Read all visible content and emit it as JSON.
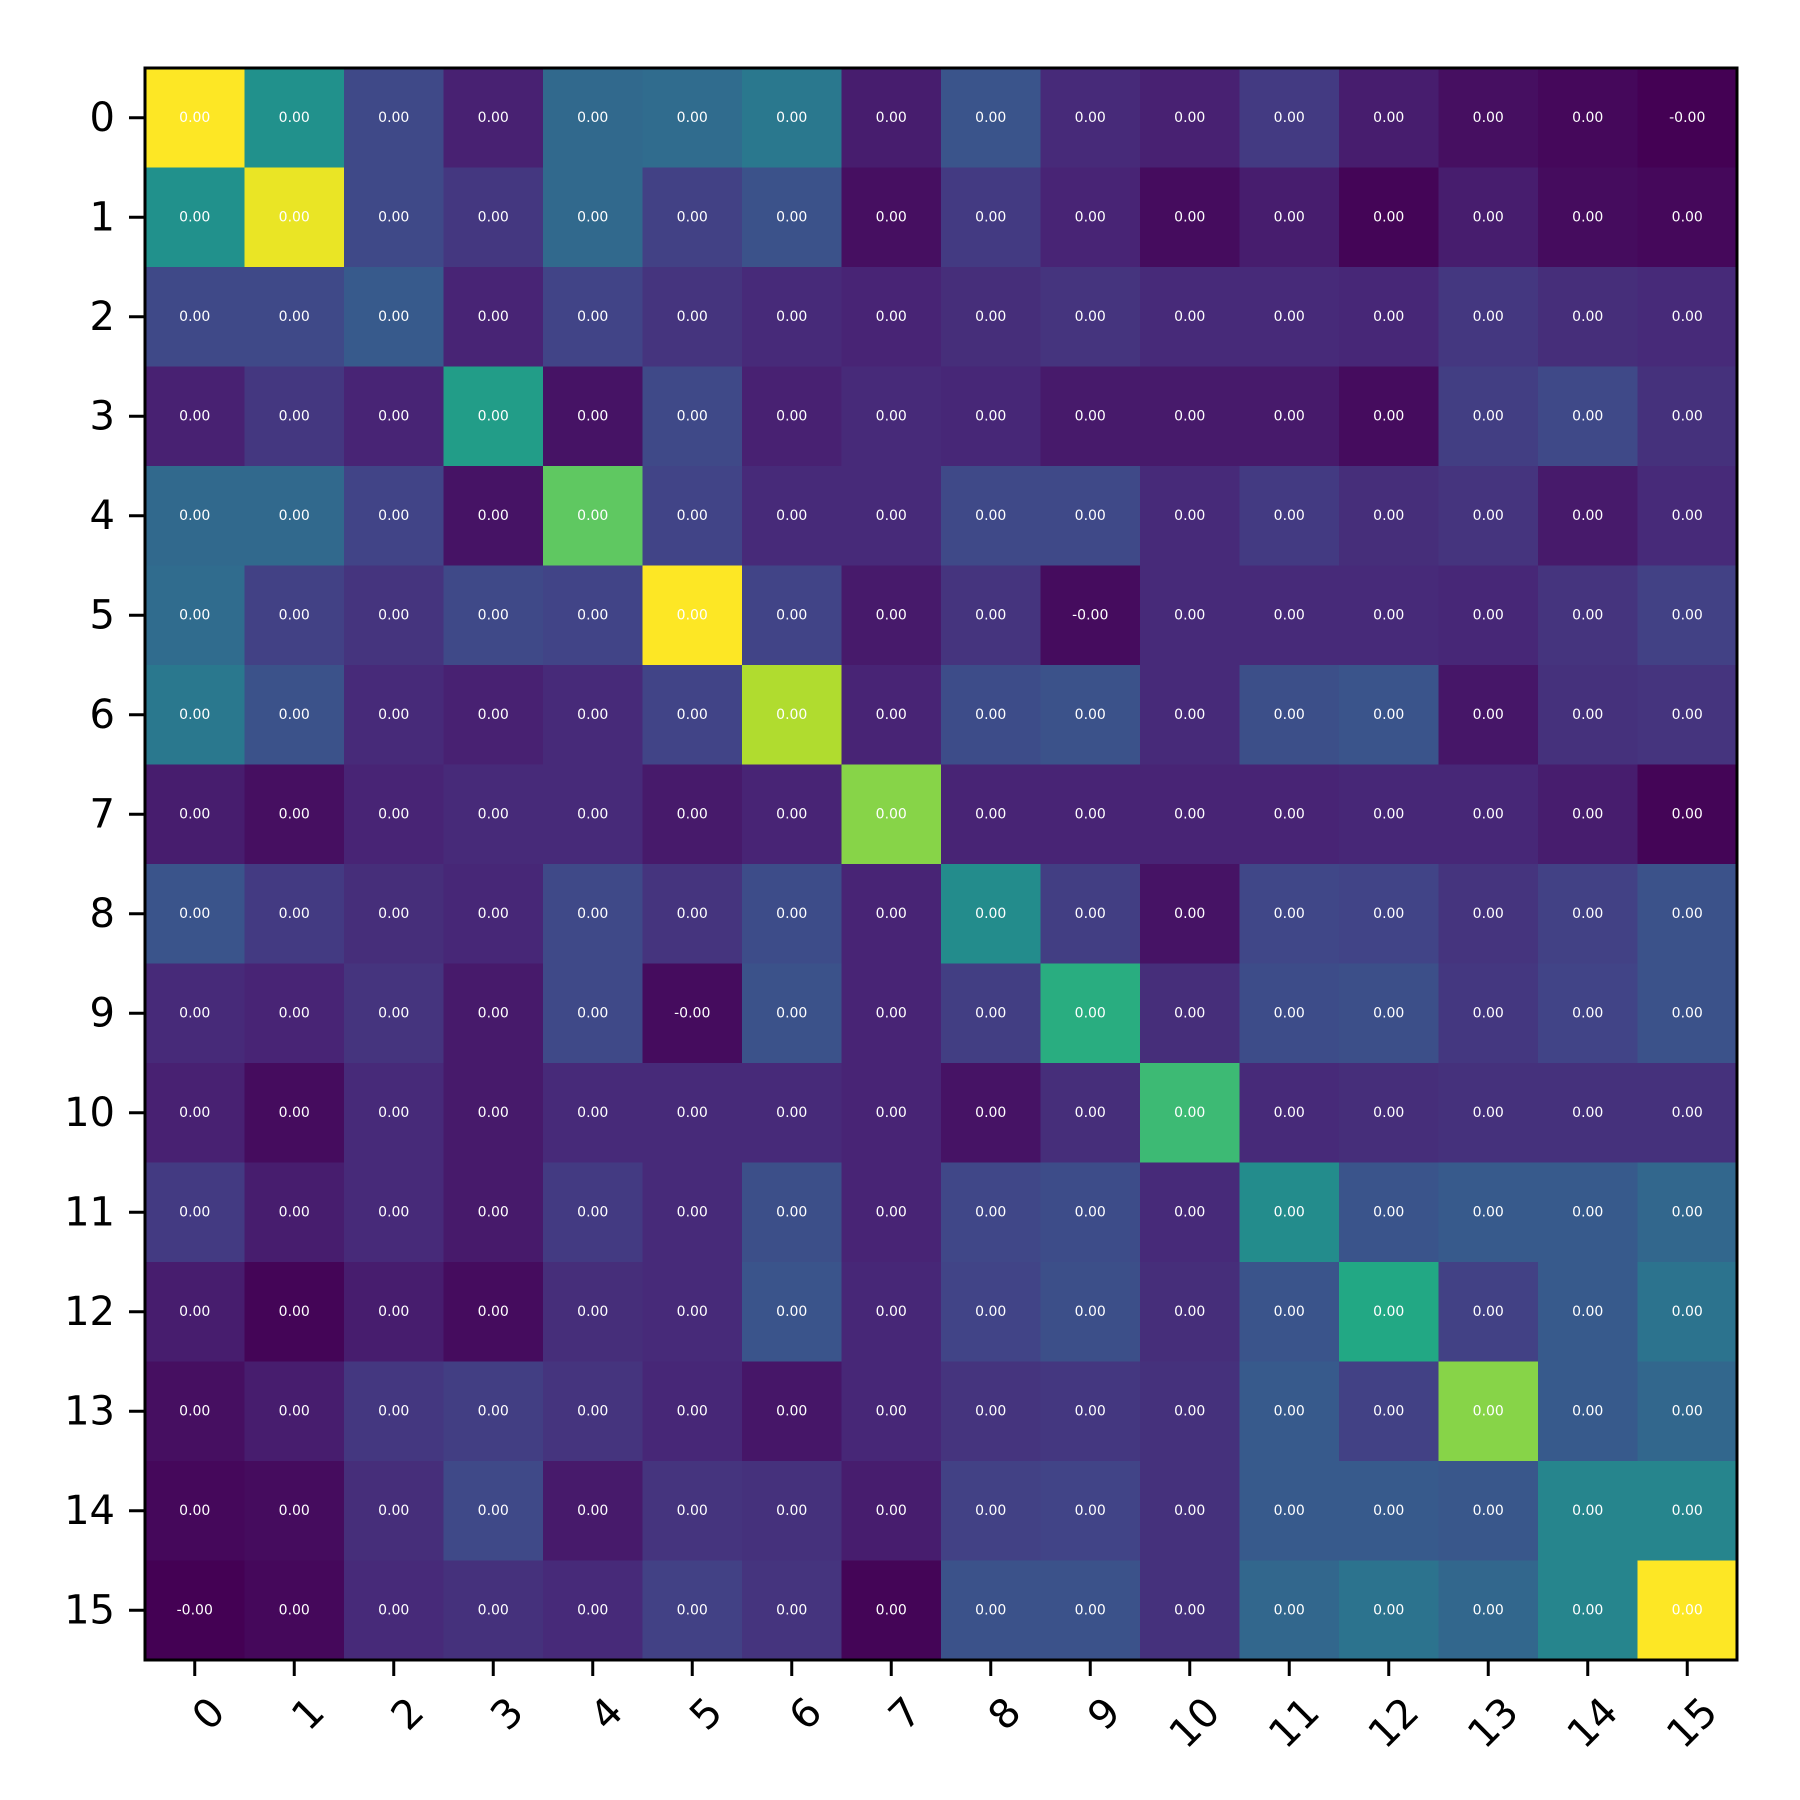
{
  "chart_data": {
    "type": "heatmap",
    "title": "",
    "xlabel": "",
    "ylabel": "",
    "x_categories": [
      "0",
      "1",
      "2",
      "3",
      "4",
      "5",
      "6",
      "7",
      "8",
      "9",
      "10",
      "11",
      "12",
      "13",
      "14",
      "15"
    ],
    "y_categories": [
      "0",
      "1",
      "2",
      "3",
      "4",
      "5",
      "6",
      "7",
      "8",
      "9",
      "10",
      "11",
      "12",
      "13",
      "14",
      "15"
    ],
    "colormap": "viridis",
    "grid": false,
    "intensity": [
      [
        1.0,
        0.5,
        0.22,
        0.09,
        0.34,
        0.35,
        0.4,
        0.08,
        0.26,
        0.12,
        0.09,
        0.17,
        0.08,
        0.04,
        0.02,
        0.0
      ],
      [
        0.5,
        0.97,
        0.22,
        0.16,
        0.34,
        0.19,
        0.25,
        0.04,
        0.17,
        0.1,
        0.03,
        0.08,
        0.01,
        0.08,
        0.03,
        0.02
      ],
      [
        0.22,
        0.22,
        0.28,
        0.1,
        0.2,
        0.15,
        0.12,
        0.1,
        0.13,
        0.15,
        0.12,
        0.12,
        0.11,
        0.16,
        0.13,
        0.12
      ],
      [
        0.09,
        0.16,
        0.1,
        0.55,
        0.05,
        0.22,
        0.09,
        0.12,
        0.11,
        0.07,
        0.07,
        0.07,
        0.03,
        0.18,
        0.22,
        0.14
      ],
      [
        0.34,
        0.34,
        0.2,
        0.05,
        0.75,
        0.2,
        0.12,
        0.12,
        0.22,
        0.22,
        0.12,
        0.17,
        0.13,
        0.15,
        0.07,
        0.12
      ],
      [
        0.35,
        0.19,
        0.15,
        0.22,
        0.2,
        1.0,
        0.2,
        0.07,
        0.15,
        0.03,
        0.12,
        0.12,
        0.12,
        0.11,
        0.15,
        0.19
      ],
      [
        0.4,
        0.25,
        0.12,
        0.09,
        0.12,
        0.2,
        0.88,
        0.1,
        0.23,
        0.25,
        0.12,
        0.24,
        0.26,
        0.06,
        0.14,
        0.15
      ],
      [
        0.08,
        0.04,
        0.1,
        0.12,
        0.12,
        0.07,
        0.1,
        0.82,
        0.1,
        0.1,
        0.1,
        0.1,
        0.11,
        0.11,
        0.08,
        0.01
      ],
      [
        0.26,
        0.17,
        0.13,
        0.11,
        0.22,
        0.15,
        0.23,
        0.1,
        0.48,
        0.18,
        0.05,
        0.21,
        0.2,
        0.15,
        0.19,
        0.25
      ],
      [
        0.12,
        0.1,
        0.15,
        0.07,
        0.22,
        0.03,
        0.25,
        0.1,
        0.18,
        0.62,
        0.13,
        0.23,
        0.24,
        0.16,
        0.2,
        0.25
      ],
      [
        0.09,
        0.03,
        0.12,
        0.07,
        0.12,
        0.12,
        0.12,
        0.1,
        0.05,
        0.13,
        0.68,
        0.12,
        0.13,
        0.14,
        0.14,
        0.14
      ],
      [
        0.17,
        0.08,
        0.12,
        0.07,
        0.17,
        0.12,
        0.24,
        0.1,
        0.21,
        0.23,
        0.12,
        0.48,
        0.26,
        0.28,
        0.28,
        0.33
      ],
      [
        0.08,
        0.01,
        0.08,
        0.03,
        0.13,
        0.12,
        0.26,
        0.11,
        0.2,
        0.24,
        0.13,
        0.26,
        0.6,
        0.19,
        0.28,
        0.38
      ],
      [
        0.04,
        0.08,
        0.16,
        0.18,
        0.15,
        0.11,
        0.06,
        0.11,
        0.15,
        0.16,
        0.14,
        0.28,
        0.19,
        0.82,
        0.28,
        0.33
      ],
      [
        0.02,
        0.03,
        0.13,
        0.22,
        0.07,
        0.15,
        0.14,
        0.08,
        0.19,
        0.2,
        0.14,
        0.28,
        0.28,
        0.27,
        0.45,
        0.45
      ],
      [
        0.0,
        0.02,
        0.12,
        0.14,
        0.12,
        0.19,
        0.15,
        0.01,
        0.25,
        0.25,
        0.14,
        0.33,
        0.38,
        0.33,
        0.45,
        1.0
      ]
    ],
    "cell_labels": [
      [
        "0.00",
        "0.00",
        "0.00",
        "0.00",
        "0.00",
        "0.00",
        "0.00",
        "0.00",
        "0.00",
        "0.00",
        "0.00",
        "0.00",
        "0.00",
        "0.00",
        "0.00",
        "-0.00"
      ],
      [
        "0.00",
        "0.00",
        "0.00",
        "0.00",
        "0.00",
        "0.00",
        "0.00",
        "0.00",
        "0.00",
        "0.00",
        "0.00",
        "0.00",
        "0.00",
        "0.00",
        "0.00",
        "0.00"
      ],
      [
        "0.00",
        "0.00",
        "0.00",
        "0.00",
        "0.00",
        "0.00",
        "0.00",
        "0.00",
        "0.00",
        "0.00",
        "0.00",
        "0.00",
        "0.00",
        "0.00",
        "0.00",
        "0.00"
      ],
      [
        "0.00",
        "0.00",
        "0.00",
        "0.00",
        "0.00",
        "0.00",
        "0.00",
        "0.00",
        "0.00",
        "0.00",
        "0.00",
        "0.00",
        "0.00",
        "0.00",
        "0.00",
        "0.00"
      ],
      [
        "0.00",
        "0.00",
        "0.00",
        "0.00",
        "0.00",
        "0.00",
        "0.00",
        "0.00",
        "0.00",
        "0.00",
        "0.00",
        "0.00",
        "0.00",
        "0.00",
        "0.00",
        "0.00"
      ],
      [
        "0.00",
        "0.00",
        "0.00",
        "0.00",
        "0.00",
        "0.00",
        "0.00",
        "0.00",
        "0.00",
        "-0.00",
        "0.00",
        "0.00",
        "0.00",
        "0.00",
        "0.00",
        "0.00"
      ],
      [
        "0.00",
        "0.00",
        "0.00",
        "0.00",
        "0.00",
        "0.00",
        "0.00",
        "0.00",
        "0.00",
        "0.00",
        "0.00",
        "0.00",
        "0.00",
        "0.00",
        "0.00",
        "0.00"
      ],
      [
        "0.00",
        "0.00",
        "0.00",
        "0.00",
        "0.00",
        "0.00",
        "0.00",
        "0.00",
        "0.00",
        "0.00",
        "0.00",
        "0.00",
        "0.00",
        "0.00",
        "0.00",
        "0.00"
      ],
      [
        "0.00",
        "0.00",
        "0.00",
        "0.00",
        "0.00",
        "0.00",
        "0.00",
        "0.00",
        "0.00",
        "0.00",
        "0.00",
        "0.00",
        "0.00",
        "0.00",
        "0.00",
        "0.00"
      ],
      [
        "0.00",
        "0.00",
        "0.00",
        "0.00",
        "0.00",
        "-0.00",
        "0.00",
        "0.00",
        "0.00",
        "0.00",
        "0.00",
        "0.00",
        "0.00",
        "0.00",
        "0.00",
        "0.00"
      ],
      [
        "0.00",
        "0.00",
        "0.00",
        "0.00",
        "0.00",
        "0.00",
        "0.00",
        "0.00",
        "0.00",
        "0.00",
        "0.00",
        "0.00",
        "0.00",
        "0.00",
        "0.00",
        "0.00"
      ],
      [
        "0.00",
        "0.00",
        "0.00",
        "0.00",
        "0.00",
        "0.00",
        "0.00",
        "0.00",
        "0.00",
        "0.00",
        "0.00",
        "0.00",
        "0.00",
        "0.00",
        "0.00",
        "0.00"
      ],
      [
        "0.00",
        "0.00",
        "0.00",
        "0.00",
        "0.00",
        "0.00",
        "0.00",
        "0.00",
        "0.00",
        "0.00",
        "0.00",
        "0.00",
        "0.00",
        "0.00",
        "0.00",
        "0.00"
      ],
      [
        "0.00",
        "0.00",
        "0.00",
        "0.00",
        "0.00",
        "0.00",
        "0.00",
        "0.00",
        "0.00",
        "0.00",
        "0.00",
        "0.00",
        "0.00",
        "0.00",
        "0.00",
        "0.00"
      ],
      [
        "0.00",
        "0.00",
        "0.00",
        "0.00",
        "0.00",
        "0.00",
        "0.00",
        "0.00",
        "0.00",
        "0.00",
        "0.00",
        "0.00",
        "0.00",
        "0.00",
        "0.00",
        "0.00"
      ],
      [
        "-0.00",
        "0.00",
        "0.00",
        "0.00",
        "0.00",
        "0.00",
        "0.00",
        "0.00",
        "0.00",
        "0.00",
        "0.00",
        "0.00",
        "0.00",
        "0.00",
        "0.00",
        "0.00"
      ]
    ]
  }
}
